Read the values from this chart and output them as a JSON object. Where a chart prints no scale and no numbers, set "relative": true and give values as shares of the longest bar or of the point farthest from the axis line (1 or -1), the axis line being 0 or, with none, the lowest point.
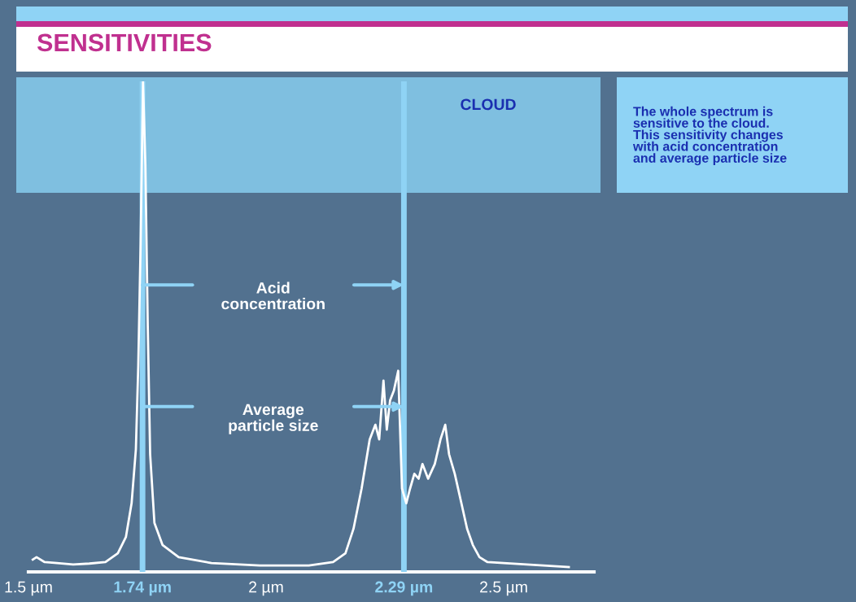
{
  "chart_data": {
    "type": "line",
    "title": "SENSITIVITIES",
    "relative": true,
    "xlim": [
      1.5,
      2.69
    ],
    "xticks": [
      {
        "value": 1.5,
        "label": "1.5 µm"
      },
      {
        "value": 1.74,
        "label": "1.74 µm"
      },
      {
        "value": 2.0,
        "label": "2 µm"
      },
      {
        "value": 2.29,
        "label": "2.29 µm"
      },
      {
        "value": 2.5,
        "label": "2.5 µm"
      }
    ],
    "series": [
      {
        "color": "#ffffff",
        "x": [
          1.509,
          1.517,
          1.534,
          1.56,
          1.594,
          1.628,
          1.662,
          1.688,
          1.705,
          1.717,
          1.726,
          1.731,
          1.736,
          1.741,
          1.746,
          1.751,
          1.756,
          1.765,
          1.782,
          1.816,
          1.885,
          1.987,
          2.09,
          2.141,
          2.167,
          2.184,
          2.201,
          2.218,
          2.23,
          2.238,
          2.247,
          2.254,
          2.261,
          2.269,
          2.278,
          2.286,
          2.295,
          2.303,
          2.312,
          2.321,
          2.329,
          2.341,
          2.355,
          2.367,
          2.377,
          2.385,
          2.397,
          2.411,
          2.423,
          2.435,
          2.449,
          2.466,
          2.5,
          2.637
        ],
        "values": [
          0.025,
          0.03,
          0.02,
          0.018,
          0.015,
          0.017,
          0.02,
          0.038,
          0.071,
          0.14,
          0.25,
          0.42,
          0.67,
          1,
          0.83,
          0.5,
          0.24,
          0.1,
          0.055,
          0.03,
          0.018,
          0.013,
          0.013,
          0.02,
          0.038,
          0.088,
          0.17,
          0.27,
          0.3,
          0.27,
          0.39,
          0.29,
          0.35,
          0.37,
          0.41,
          0.17,
          0.14,
          0.17,
          0.2,
          0.19,
          0.22,
          0.19,
          0.22,
          0.27,
          0.3,
          0.24,
          0.2,
          0.14,
          0.088,
          0.055,
          0.03,
          0.02,
          0.018,
          0.01
        ]
      }
    ],
    "ref_lines": [
      {
        "axis": "x",
        "value": 1.74,
        "color": "#8fd3f5"
      },
      {
        "axis": "x",
        "value": 2.29,
        "color": "#8fd3f5"
      }
    ],
    "annotations": [
      "CLOUD",
      "The whole spectrum is\nsensitive to the cloud.\nThis sensitivity changes\nwith acid concentration\nand average particle size",
      "Acid\nconcentration",
      "Average\nparticle size"
    ],
    "grid": false,
    "legend": false,
    "marker": "none",
    "line_style": "solid"
  }
}
